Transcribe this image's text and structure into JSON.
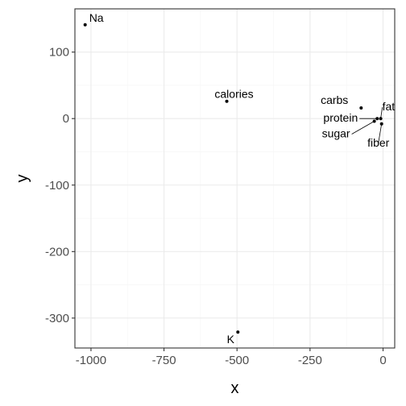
{
  "chart_data": {
    "type": "scatter",
    "xlabel": "x",
    "ylabel": "y",
    "xlim": [
      -1055,
      40
    ],
    "ylim": [
      -345,
      165
    ],
    "grid": true,
    "x_major_ticks": [
      -1000,
      -750,
      -500,
      -250,
      0
    ],
    "x_minor_ticks": [
      -875,
      -625,
      -375,
      -125
    ],
    "y_major_ticks": [
      100,
      0,
      -100,
      -200,
      -300
    ],
    "y_minor_ticks": [
      50,
      -50,
      -150,
      -250
    ],
    "x_tick_labels": [
      "-1000",
      "-750",
      "-500",
      "-250",
      "0"
    ],
    "y_tick_labels": [
      "100",
      "0",
      "-100",
      "-200",
      "-300"
    ],
    "points": [
      {
        "label": "Na",
        "x": -1020,
        "y": 141
      },
      {
        "label": "calories",
        "x": -535,
        "y": 26
      },
      {
        "label": "carbs",
        "x": -75,
        "y": 16
      },
      {
        "label": "fat",
        "x": -8,
        "y": 0
      },
      {
        "label": "protein",
        "x": -20,
        "y": 0
      },
      {
        "label": "sugar",
        "x": -30,
        "y": -4
      },
      {
        "label": "fiber",
        "x": -5,
        "y": -8
      },
      {
        "label": "K",
        "x": -497,
        "y": -321
      }
    ],
    "colors": {
      "panel_border": "#333333",
      "grid_major": "#ebebeb",
      "grid_minor": "#f5f5f5",
      "point": "#000000"
    }
  }
}
